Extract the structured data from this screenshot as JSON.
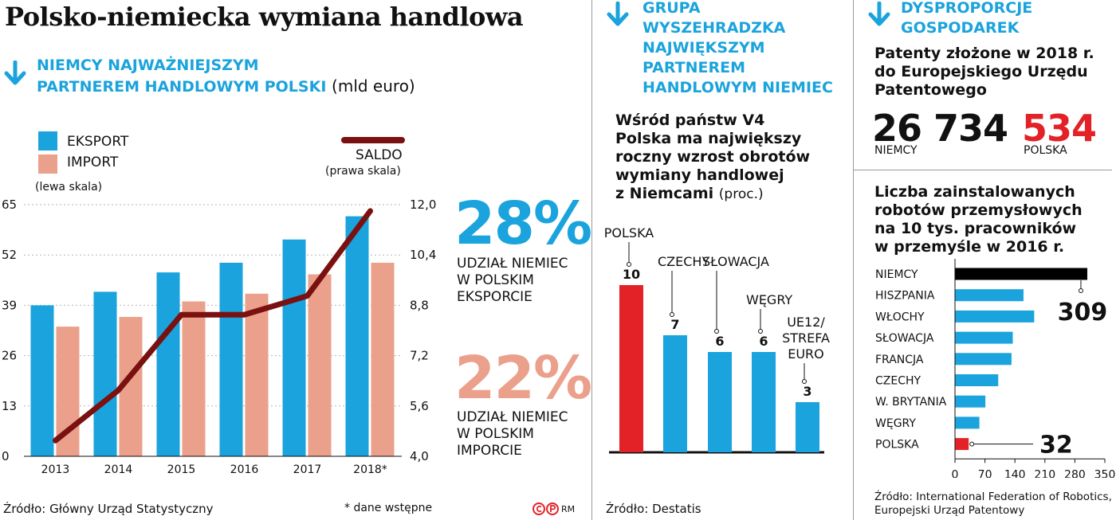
{
  "title": "Polsko-niemiecka wymiana handlowa",
  "colors": {
    "blue": "#1aa3dc",
    "salmon": "#eba08c",
    "saldo": "#7a1010",
    "red": "#e32227",
    "black": "#000000"
  },
  "section1": {
    "title_line1": "NIEMCY NAJWAŻNIEJSZYM",
    "title_line2": "PARTNEREM HANDLOWYM POLSKI",
    "unit": "(mld euro)",
    "legend": {
      "export": "EKSPORT",
      "import": "IMPORT",
      "left_scale": "(lewa skala)",
      "saldo": "SALDO",
      "right_scale": "(prawa skala)"
    },
    "stat1": {
      "value": "28%",
      "label1": "UDZIAŁ NIEMIEC",
      "label2": "W POLSKIM",
      "label3": "EKSPORCIE"
    },
    "stat2": {
      "value": "22%",
      "label1": "UDZIAŁ NIEMIEC",
      "label2": "W POLSKIM",
      "label3": "IMPORCIE"
    },
    "source": "Źródło: Główny Urząd Statystyczny",
    "note": "* dane wstępne",
    "copyright": "RM"
  },
  "section2": {
    "title_lines": [
      "GRUPA",
      "WYSZEHRADZKA",
      "NAJWIĘKSZYM",
      "PARTNEREM",
      "HANDLOWYM NIEMIEC"
    ],
    "heading_lines": [
      "Wśród państw V4",
      "Polska ma największy",
      "roczny wzrost obrotów",
      "wymiany handlowej",
      "z Niemcami"
    ],
    "unit": "(proc.)",
    "source": "Źródło: Destatis"
  },
  "section3": {
    "title_line1": "DYSPROPORCJE",
    "title_line2": "GOSPODAREK",
    "patents_heading": [
      "Patenty złożone w 2018 r.",
      "do Europejskiego Urzędu",
      "Patentowego"
    ],
    "patents_de_value": "26 734",
    "patents_de_label": "NIEMCY",
    "patents_pl_value": "534",
    "patents_pl_label": "POLSKA",
    "robots_heading": [
      "Liczba zainstalowanych",
      "robotów przemysłowych",
      "na 10 tys. pracowników",
      "w przemyśle w 2016 r."
    ],
    "source_line1": "Źródło: International Federation of Robotics,",
    "source_line2": "Europejski Urząd Patentowy"
  },
  "chart_data": [
    {
      "type": "bar",
      "title": "NIEMCY NAJWAŻNIEJSZYM PARTNEREM HANDLOWYM POLSKI",
      "categories": [
        "2013",
        "2014",
        "2015",
        "2016",
        "2017",
        "2018*"
      ],
      "series": [
        {
          "name": "EKSPORT",
          "axis": "left",
          "values": [
            39,
            42.5,
            47.5,
            50,
            56,
            62
          ]
        },
        {
          "name": "IMPORT",
          "axis": "left",
          "values": [
            33.5,
            36,
            40,
            42,
            47,
            50
          ]
        },
        {
          "name": "SALDO",
          "axis": "right",
          "type": "line",
          "values": [
            4.5,
            6.1,
            8.5,
            8.5,
            9.1,
            11.8
          ]
        }
      ],
      "ylim": [
        0,
        65
      ],
      "yticks": [
        0,
        13,
        26,
        39,
        52,
        65
      ],
      "y2lim": [
        4.0,
        12.0
      ],
      "y2ticks": [
        "4,0",
        "5,6",
        "7,2",
        "8,8",
        "10,4",
        "12,0"
      ],
      "grid": true
    },
    {
      "type": "bar",
      "title": "Wśród państw V4 Polska ma największy roczny wzrost obrotów wymiany handlowej z Niemcami",
      "categories": [
        "POLSKA",
        "CZECHY",
        "SŁOWACJA",
        "WĘGRY",
        "UE12/STREFA EURO"
      ],
      "category_lines": [
        [
          "POLSKA"
        ],
        [
          "CZECHY"
        ],
        [
          "SŁOWACJA"
        ],
        [
          "WĘGRY"
        ],
        [
          "UE12/",
          "STREFA",
          "EURO"
        ]
      ],
      "values": [
        10,
        7,
        6,
        6,
        3
      ],
      "value_labels": [
        "10",
        "7",
        "6",
        "6",
        "3"
      ],
      "highlight": [
        true,
        false,
        false,
        false,
        false
      ]
    },
    {
      "type": "bar",
      "orientation": "horizontal",
      "title": "Liczba zainstalowanych robotów przemysłowych na 10 tys. pracowników w przemyśle w 2016 r.",
      "categories": [
        "NIEMCY",
        "HISZPANIA",
        "WŁOCHY",
        "SŁOWACJA",
        "FRANCJA",
        "CZECHY",
        "W. BRYTANIA",
        "WĘGRY",
        "POLSKA"
      ],
      "values": [
        309,
        160,
        185,
        135,
        132,
        101,
        71,
        57,
        32
      ],
      "value_labels": {
        "NIEMCY": "309",
        "POLSKA": "32"
      },
      "xlim": [
        0,
        350
      ],
      "xticks": [
        "0",
        "70",
        "140",
        "210",
        "280",
        "350"
      ]
    }
  ]
}
